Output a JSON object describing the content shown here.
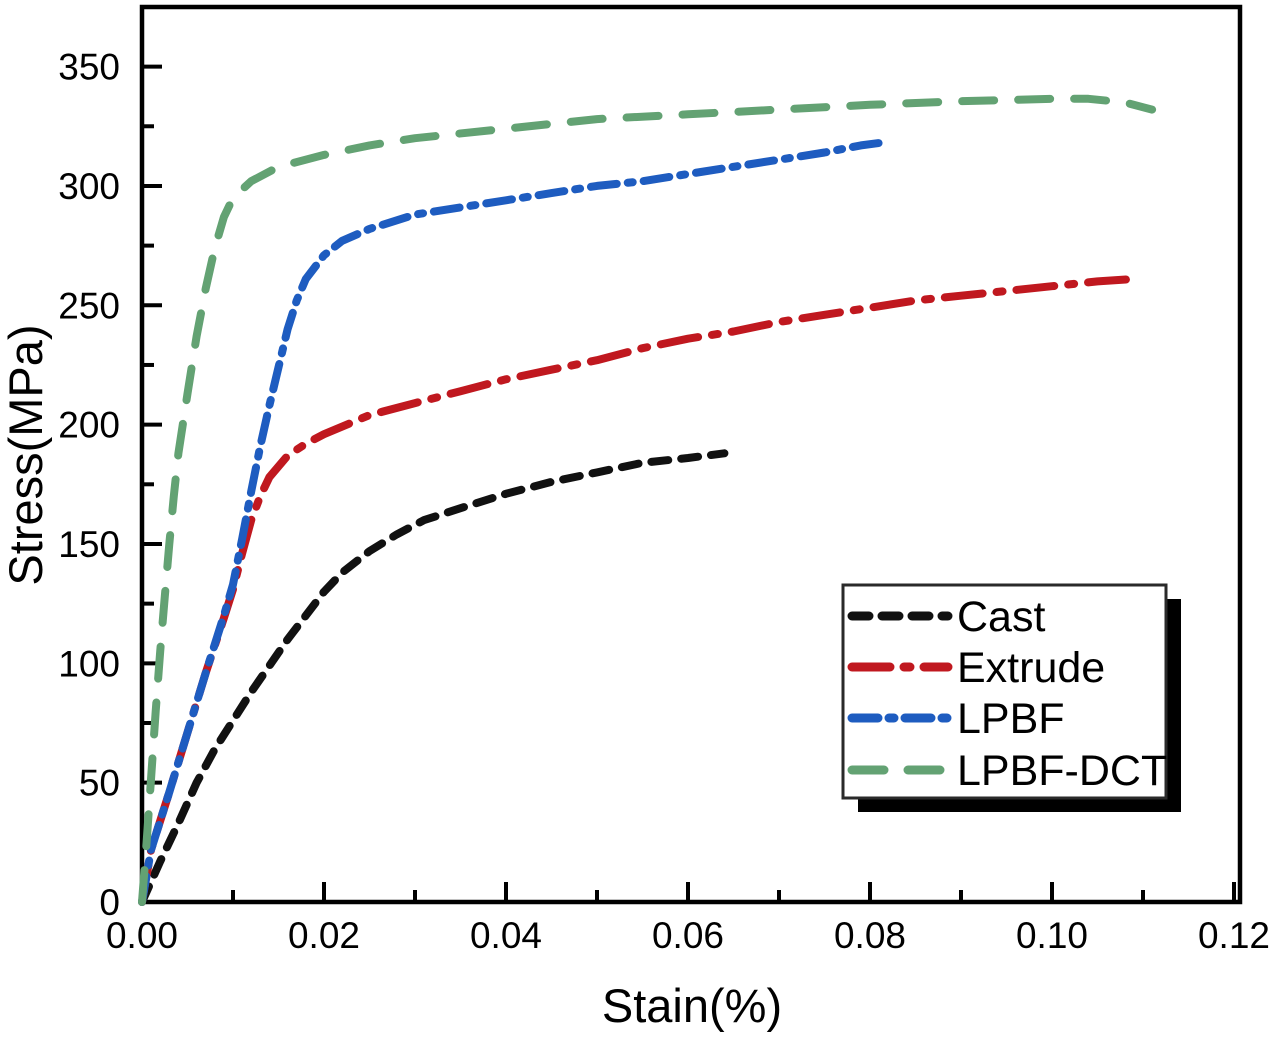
{
  "chart_data": {
    "type": "line",
    "title": "",
    "xlabel": "Stain(%)",
    "ylabel": "Stress(MPa)",
    "xlim": [
      0,
      0.12
    ],
    "ylim": [
      0,
      375
    ],
    "grid": false,
    "legend_position": "inside lower-right",
    "x_ticks": [
      0.0,
      0.02,
      0.04,
      0.06,
      0.08,
      0.1,
      0.12
    ],
    "x_tick_labels": [
      "0.00",
      "0.02",
      "0.04",
      "0.06",
      "0.08",
      "0.10",
      "0.12"
    ],
    "x_minor_ticks": [
      0.01,
      0.03,
      0.05,
      0.07,
      0.09,
      0.11
    ],
    "y_ticks": [
      0,
      50,
      100,
      150,
      200,
      250,
      300,
      350
    ],
    "y_tick_labels": [
      "0",
      "50",
      "100",
      "150",
      "200",
      "250",
      "300",
      "350"
    ],
    "y_minor_ticks": [
      25,
      75,
      125,
      175,
      225,
      275,
      325
    ],
    "series": [
      {
        "name": "Cast",
        "color": "#111111",
        "dash": "17 13",
        "points": [
          [
            0,
            0
          ],
          [
            0.002,
            17
          ],
          [
            0.004,
            33
          ],
          [
            0.006,
            50
          ],
          [
            0.008,
            64
          ],
          [
            0.01,
            76
          ],
          [
            0.012,
            88
          ],
          [
            0.014,
            99
          ],
          [
            0.016,
            110
          ],
          [
            0.018,
            120
          ],
          [
            0.02,
            130
          ],
          [
            0.022,
            138
          ],
          [
            0.025,
            147
          ],
          [
            0.028,
            154
          ],
          [
            0.031,
            160
          ],
          [
            0.035,
            165
          ],
          [
            0.04,
            171
          ],
          [
            0.045,
            176
          ],
          [
            0.05,
            180
          ],
          [
            0.055,
            184
          ],
          [
            0.06,
            186
          ],
          [
            0.064,
            188
          ]
        ]
      },
      {
        "name": "Extrude",
        "color": "#c0181f",
        "dash": "38 14 6 14",
        "points": [
          [
            0,
            0
          ],
          [
            0.001,
            22
          ],
          [
            0.003,
            46
          ],
          [
            0.005,
            71
          ],
          [
            0.007,
            96
          ],
          [
            0.009,
            119
          ],
          [
            0.01,
            131
          ],
          [
            0.011,
            146
          ],
          [
            0.012,
            160
          ],
          [
            0.013,
            170
          ],
          [
            0.014,
            178
          ],
          [
            0.016,
            187
          ],
          [
            0.018,
            192
          ],
          [
            0.02,
            196
          ],
          [
            0.025,
            204
          ],
          [
            0.03,
            209
          ],
          [
            0.035,
            214
          ],
          [
            0.04,
            219
          ],
          [
            0.045,
            223
          ],
          [
            0.05,
            227
          ],
          [
            0.055,
            232
          ],
          [
            0.06,
            236
          ],
          [
            0.065,
            239
          ],
          [
            0.07,
            243
          ],
          [
            0.075,
            246
          ],
          [
            0.08,
            249
          ],
          [
            0.085,
            252
          ],
          [
            0.09,
            254
          ],
          [
            0.095,
            256
          ],
          [
            0.1,
            258
          ],
          [
            0.105,
            260
          ],
          [
            0.109,
            261
          ]
        ]
      },
      {
        "name": "LPBF",
        "color": "#1e5cc0",
        "dash": "26 11 5 11",
        "points": [
          [
            0,
            0
          ],
          [
            0.001,
            22
          ],
          [
            0.003,
            46
          ],
          [
            0.005,
            71
          ],
          [
            0.007,
            96
          ],
          [
            0.009,
            120
          ],
          [
            0.01,
            133
          ],
          [
            0.011,
            152
          ],
          [
            0.012,
            172
          ],
          [
            0.013,
            191
          ],
          [
            0.014,
            208
          ],
          [
            0.015,
            224
          ],
          [
            0.016,
            240
          ],
          [
            0.017,
            252
          ],
          [
            0.018,
            261
          ],
          [
            0.02,
            271
          ],
          [
            0.022,
            277
          ],
          [
            0.025,
            282
          ],
          [
            0.03,
            288
          ],
          [
            0.035,
            291
          ],
          [
            0.04,
            294
          ],
          [
            0.045,
            297
          ],
          [
            0.05,
            300
          ],
          [
            0.055,
            302
          ],
          [
            0.06,
            305
          ],
          [
            0.065,
            308
          ],
          [
            0.07,
            311
          ],
          [
            0.075,
            314
          ],
          [
            0.079,
            317
          ],
          [
            0.081,
            318
          ]
        ]
      },
      {
        "name": "LPBF-DCT",
        "color": "#63a273",
        "dash": "32 24",
        "points": [
          [
            0,
            0
          ],
          [
            0.0005,
            25
          ],
          [
            0.001,
            52
          ],
          [
            0.0015,
            80
          ],
          [
            0.002,
            105
          ],
          [
            0.0025,
            128
          ],
          [
            0.003,
            150
          ],
          [
            0.0035,
            170
          ],
          [
            0.004,
            188
          ],
          [
            0.005,
            213
          ],
          [
            0.006,
            237
          ],
          [
            0.007,
            257
          ],
          [
            0.008,
            274
          ],
          [
            0.009,
            287
          ],
          [
            0.01,
            295
          ],
          [
            0.012,
            302
          ],
          [
            0.015,
            308
          ],
          [
            0.02,
            313
          ],
          [
            0.025,
            317
          ],
          [
            0.03,
            320
          ],
          [
            0.04,
            324
          ],
          [
            0.05,
            328
          ],
          [
            0.06,
            330
          ],
          [
            0.07,
            332
          ],
          [
            0.08,
            334
          ],
          [
            0.09,
            335.5
          ],
          [
            0.1,
            336.5
          ],
          [
            0.104,
            336.5
          ],
          [
            0.108,
            335
          ],
          [
            0.111,
            332
          ]
        ]
      }
    ],
    "legend": {
      "labels": [
        "Cast",
        "Extrude",
        "LPBF",
        "LPBF-DCT"
      ]
    }
  }
}
